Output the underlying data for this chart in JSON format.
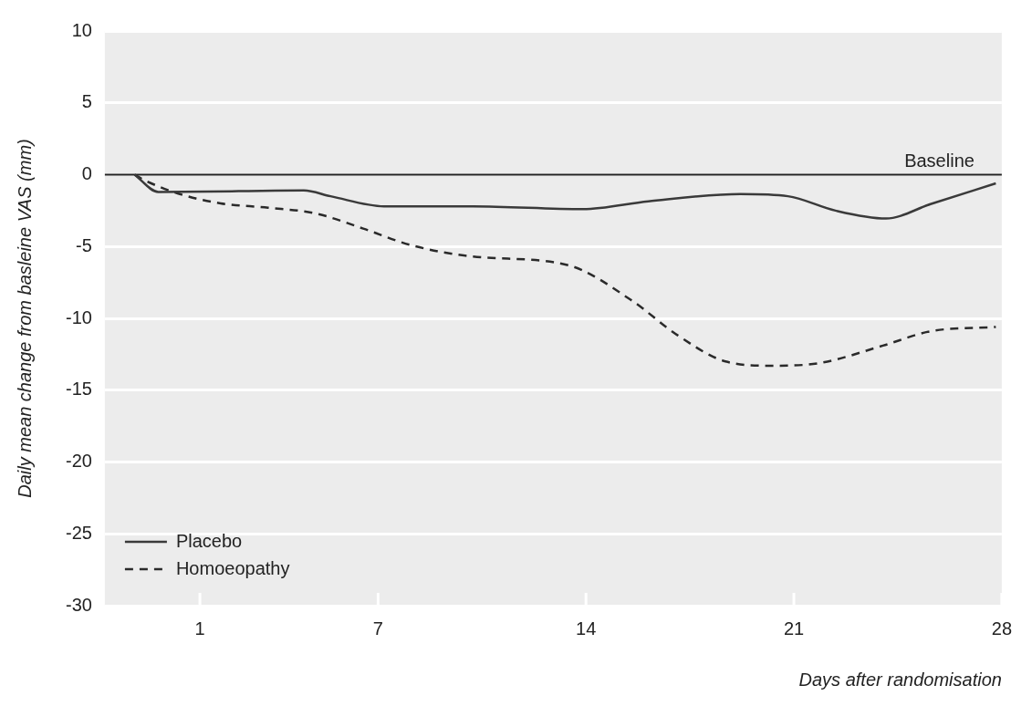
{
  "chart_data": {
    "type": "line",
    "xlabel": "Days after randomisation",
    "ylabel": "Daily mean change from basleine VAS (mm)",
    "xlim": [
      -2.2,
      28
    ],
    "xticks": [
      1,
      7,
      14,
      21,
      28
    ],
    "ylim": [
      -30,
      10
    ],
    "yticks": [
      10,
      5,
      0,
      -5,
      -10,
      -15,
      -20,
      -25,
      -30
    ],
    "grid": "y",
    "legend": "bottom left",
    "marker": "none",
    "ref_lines": [
      {
        "axis": "y",
        "value": 0,
        "label": "Baseline",
        "color": "#222222"
      }
    ],
    "series": [
      {
        "name": "Placebo",
        "color": "#3a3a3a",
        "line_style": "solid",
        "x": [
          -1.2,
          -0.4,
          2.3,
          4.5,
          5.4,
          7.2,
          10.2,
          13.9,
          16.1,
          19.2,
          20.8,
          22.4,
          24.1,
          25.6,
          27.8
        ],
        "values": [
          0,
          -1.2,
          -1.15,
          -1.1,
          -1.5,
          -2.2,
          -2.2,
          -2.4,
          -1.85,
          -1.35,
          -1.5,
          -2.5,
          -3.05,
          -2.05,
          -0.6
        ]
      },
      {
        "name": "Homoeopathy",
        "color": "#2a2a2a",
        "line_style": "dashed",
        "x": [
          -1.2,
          -0.9,
          0.25,
          1.7,
          3.3,
          4.9,
          6.5,
          8.1,
          10.2,
          13.4,
          15.5,
          17.1,
          18.7,
          20.3,
          21.9,
          24.0,
          25.6,
          27.8
        ],
        "values": [
          0,
          -0.35,
          -1.3,
          -2.0,
          -2.3,
          -2.7,
          -3.75,
          -4.9,
          -5.7,
          -6.3,
          -8.7,
          -11.2,
          -13.0,
          -13.3,
          -13.1,
          -11.9,
          -10.9,
          -10.6
        ]
      }
    ]
  }
}
